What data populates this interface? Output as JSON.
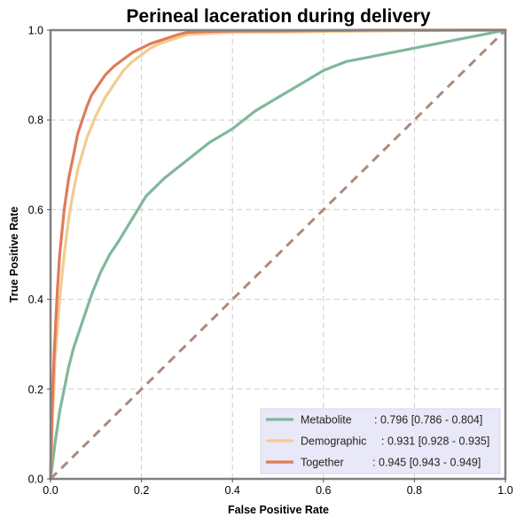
{
  "chart_data": {
    "type": "line",
    "title": "Perineal laceration during delivery",
    "xlabel": "False Positive Rate",
    "ylabel": "True Positive Rate",
    "xlim": [
      0,
      1
    ],
    "ylim": [
      0,
      1
    ],
    "xticks": [
      "0.0",
      "0.2",
      "0.4",
      "0.6",
      "0.8",
      "1.0"
    ],
    "yticks": [
      "0.0",
      "0.2",
      "0.4",
      "0.6",
      "0.8",
      "1.0"
    ],
    "grid": true,
    "legend_position": "bottom-right",
    "diagonal": {
      "x": [
        0,
        1
      ],
      "y": [
        0,
        1
      ],
      "color": "#a88c7c",
      "style": "dashed"
    },
    "series": [
      {
        "name": "Metabolite",
        "label": ": 0.796 [0.786 - 0.804]",
        "color": "#7fb89a",
        "x": [
          0,
          0.005,
          0.01,
          0.02,
          0.03,
          0.04,
          0.05,
          0.07,
          0.09,
          0.11,
          0.13,
          0.15,
          0.18,
          0.21,
          0.25,
          0.3,
          0.35,
          0.4,
          0.45,
          0.5,
          0.55,
          0.6,
          0.65,
          0.7,
          0.75,
          0.8,
          0.85,
          0.9,
          0.95,
          1.0
        ],
        "y": [
          0,
          0.04,
          0.08,
          0.15,
          0.2,
          0.25,
          0.29,
          0.35,
          0.41,
          0.46,
          0.5,
          0.53,
          0.58,
          0.63,
          0.67,
          0.71,
          0.75,
          0.78,
          0.82,
          0.85,
          0.88,
          0.91,
          0.93,
          0.94,
          0.95,
          0.96,
          0.97,
          0.98,
          0.99,
          1.0
        ]
      },
      {
        "name": "Demographic",
        "label": ": 0.931 [0.928 - 0.935]",
        "color": "#f3cc8e",
        "x": [
          0,
          0.005,
          0.01,
          0.02,
          0.03,
          0.04,
          0.05,
          0.06,
          0.08,
          0.1,
          0.12,
          0.14,
          0.16,
          0.18,
          0.2,
          0.22,
          0.24,
          0.27,
          0.3,
          0.35,
          0.4,
          0.5,
          0.6,
          0.7,
          0.8,
          0.9,
          1.0
        ],
        "y": [
          0,
          0.15,
          0.27,
          0.4,
          0.5,
          0.58,
          0.64,
          0.69,
          0.76,
          0.81,
          0.85,
          0.88,
          0.91,
          0.93,
          0.945,
          0.96,
          0.97,
          0.98,
          0.99,
          0.993,
          0.995,
          0.996,
          0.997,
          0.998,
          0.999,
          1.0,
          1.0
        ]
      },
      {
        "name": "Together",
        "label": ": 0.945 [0.943 - 0.949]",
        "color": "#e07b5b",
        "x": [
          0,
          0.003,
          0.008,
          0.015,
          0.02,
          0.03,
          0.04,
          0.05,
          0.06,
          0.07,
          0.08,
          0.09,
          0.1,
          0.12,
          0.14,
          0.16,
          0.18,
          0.2,
          0.22,
          0.25,
          0.28,
          0.3,
          0.35,
          0.4,
          0.5,
          0.6,
          0.7,
          0.8,
          0.9,
          1.0
        ],
        "y": [
          0,
          0.14,
          0.28,
          0.42,
          0.5,
          0.6,
          0.67,
          0.72,
          0.77,
          0.8,
          0.83,
          0.855,
          0.87,
          0.9,
          0.92,
          0.935,
          0.95,
          0.96,
          0.97,
          0.98,
          0.99,
          0.995,
          0.997,
          0.998,
          0.998,
          0.999,
          1.0,
          1.0,
          1.0,
          1.0
        ]
      }
    ]
  }
}
